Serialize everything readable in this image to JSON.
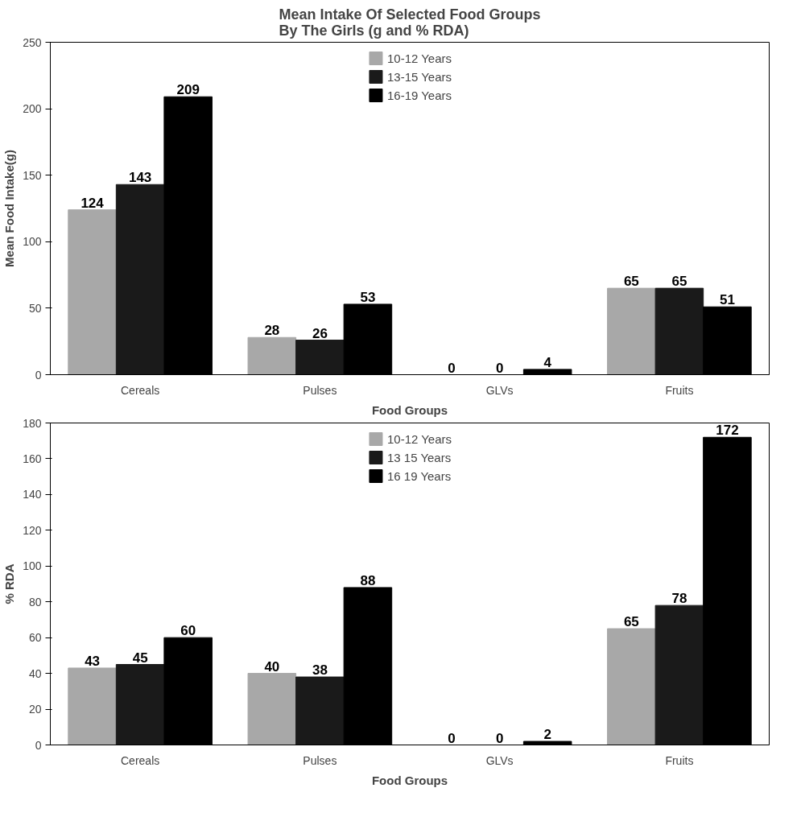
{
  "chart_data": [
    {
      "type": "bar",
      "title": "Mean Intake Of Selected Food Groups\nBy The Girls (g and % RDA)",
      "xlabel": "Food Groups",
      "ylabel": "Mean Food Intake(g)",
      "categories": [
        "Cereals",
        "Pulses",
        "GLVs",
        "Fruits"
      ],
      "series": [
        {
          "name": "10-12 Years",
          "color": "#a8a8a8",
          "values": [
            124,
            28,
            0,
            65
          ]
        },
        {
          "name": "13-15 Years",
          "color": "#1a1a1a",
          "values": [
            143,
            26,
            0,
            65
          ]
        },
        {
          "name": "16-19 Years",
          "color": "#000000",
          "values": [
            209,
            53,
            4,
            51
          ]
        }
      ],
      "ylim": [
        0,
        250
      ],
      "yticks": [
        0,
        50,
        100,
        150,
        200,
        250
      ],
      "data_labels": true,
      "legend": "top",
      "grid": false
    },
    {
      "type": "bar",
      "xlabel": "Food Groups",
      "ylabel": "% RDA",
      "categories": [
        "Cereals",
        "Pulses",
        "GLVs",
        "Fruits"
      ],
      "series": [
        {
          "name": "10-12 Years",
          "color": "#a8a8a8",
          "values": [
            43,
            40,
            0,
            65
          ]
        },
        {
          "name": "13 15 Years",
          "color": "#1a1a1a",
          "values": [
            45,
            38,
            0,
            78
          ]
        },
        {
          "name": "16 19 Years",
          "color": "#000000",
          "values": [
            60,
            88,
            2,
            172
          ]
        }
      ],
      "ylim": [
        0,
        180
      ],
      "yticks": [
        0,
        20,
        40,
        60,
        80,
        100,
        120,
        140,
        160,
        180
      ],
      "data_labels": true,
      "legend": "top",
      "grid": false
    }
  ]
}
